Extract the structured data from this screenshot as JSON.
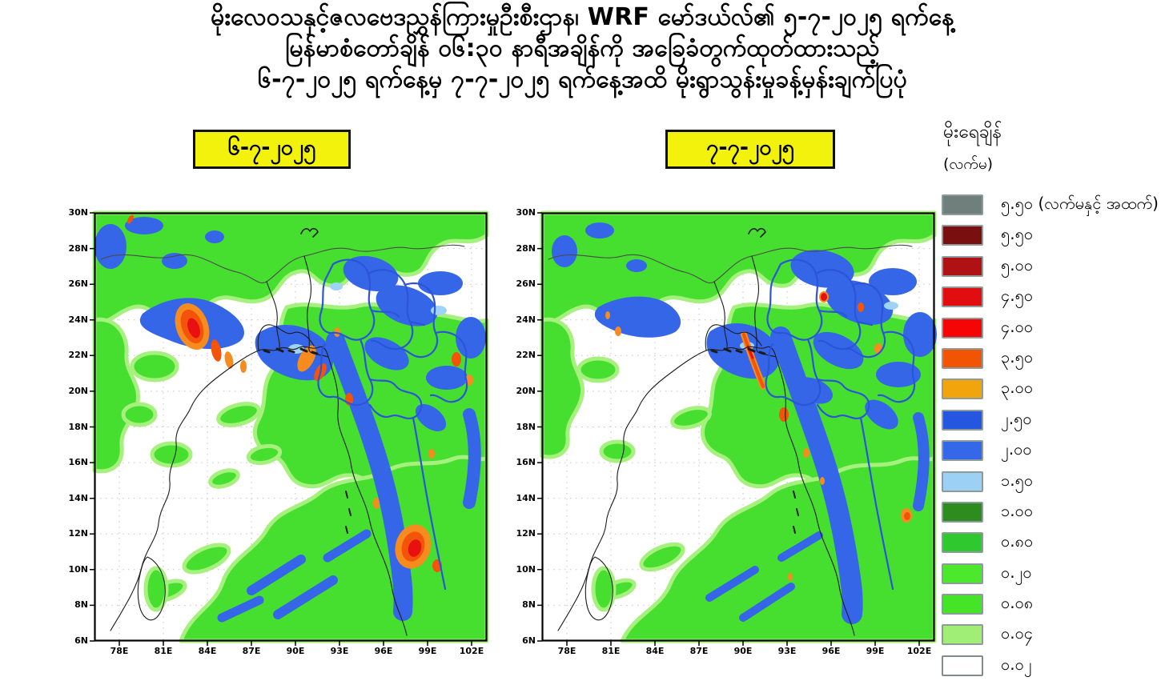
{
  "title": {
    "line1": "မိုးလေဝသနှင့်ဇလဗေဒညွှန်ကြားမှုဦးစီးဌာန၊ WRF မော်ဒယ်လ်၏ ၅-၇-၂၀၂၅ ရက်နေ့",
    "line2": "မြန်မာစံတော်ချိန် ၀၆:၃၀ နာရီအချိန်ကို အခြေခံတွက်ထုတ်ထားသည့်",
    "line3": "၆-၇-၂၀၂၅ ရက်နေ့မှ ၇-၇-၂၀၂၅ ရက်နေ့အထိ မိုးရွာသွန်းမှုခန့်မှန်းချက်ပြပုံ"
  },
  "panels": [
    {
      "id": "left",
      "date_label": "၆-၇-၂၀၂၅"
    },
    {
      "id": "right",
      "date_label": "၇-၇-၂၀၂၅"
    }
  ],
  "chip_color": "#F2F20C",
  "axes": {
    "lat_labels": [
      "30N",
      "28N",
      "26N",
      "24N",
      "22N",
      "20N",
      "18N",
      "16N",
      "14N",
      "12N",
      "10N",
      "8N",
      "6N"
    ],
    "lon_labels": [
      "78E",
      "81E",
      "84E",
      "87E",
      "90E",
      "93E",
      "96E",
      "99E",
      "102E"
    ]
  },
  "legend": {
    "title": "မိုးရေချိန်",
    "unit": "(လက်မ)",
    "items": [
      {
        "label": "၅.၅၀ (လက်မနှင့် အထက်)",
        "color": "#6E7F7C"
      },
      {
        "label": "၅.၅၀",
        "color": "#7A0F10"
      },
      {
        "label": "၅.၀၀",
        "color": "#B01114"
      },
      {
        "label": "၄.၅၀",
        "color": "#E20D10"
      },
      {
        "label": "၄.၀၀",
        "color": "#F50505"
      },
      {
        "label": "၃.၅၀",
        "color": "#F25405"
      },
      {
        "label": "၃.၀၀",
        "color": "#F2A40D"
      },
      {
        "label": "၂.၅၀",
        "color": "#2456E0"
      },
      {
        "label": "၂.၀၀",
        "color": "#3568E8"
      },
      {
        "label": "၁.၅၀",
        "color": "#9CD0F5"
      },
      {
        "label": "၁.၀၀",
        "color": "#2E8B1E"
      },
      {
        "label": "၀.၈၀",
        "color": "#2FC92F"
      },
      {
        "label": "၀.၂၀",
        "color": "#4BE82B"
      },
      {
        "label": "၀.၀၈",
        "color": "#46E427"
      },
      {
        "label": "၀.၀၄",
        "color": "#A0EE75"
      },
      {
        "label": "၀.၀၂",
        "color": "#FFFFFF"
      }
    ]
  }
}
